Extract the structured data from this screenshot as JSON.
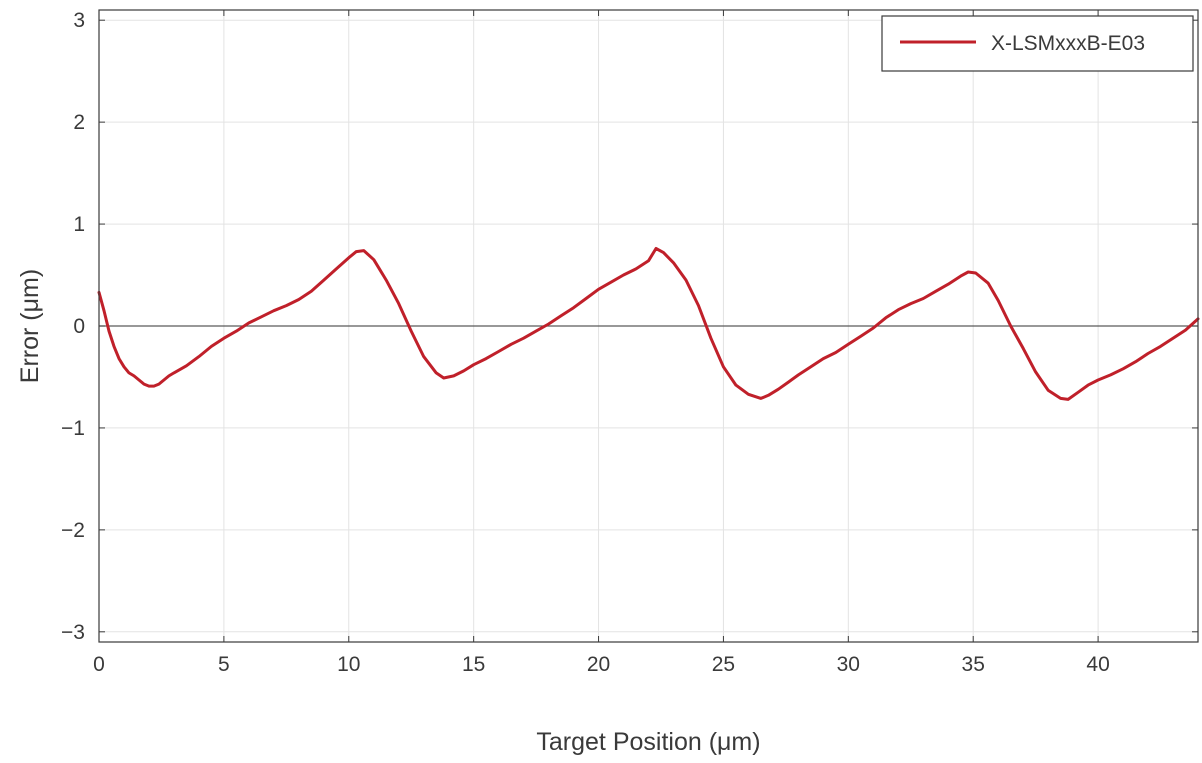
{
  "chart_data": {
    "type": "line",
    "title": "",
    "xlabel": "Target Position (μm)",
    "ylabel": "Error (μm)",
    "xlim": [
      0,
      44
    ],
    "ylim": [
      -3.1,
      3.1
    ],
    "xticks": [
      0,
      5,
      10,
      15,
      20,
      25,
      30,
      35,
      40
    ],
    "xtick_labels": [
      "0",
      "5",
      "10",
      "15",
      "20",
      "25",
      "30",
      "35",
      "40"
    ],
    "yticks": [
      -3,
      -2,
      -1,
      0,
      1,
      2,
      3
    ],
    "ytick_labels": [
      "−3",
      "−2",
      "−1",
      "0",
      "1",
      "2",
      "3"
    ],
    "grid": true,
    "legend_position": "top-right",
    "series": [
      {
        "name": "X-LSMxxxB-E03",
        "color": "#c0202a",
        "x": [
          0,
          0.2,
          0.4,
          0.6,
          0.8,
          1.0,
          1.2,
          1.4,
          1.6,
          1.8,
          2.0,
          2.2,
          2.4,
          2.6,
          2.8,
          3.0,
          3.5,
          4.0,
          4.5,
          5.0,
          5.5,
          6.0,
          6.5,
          7.0,
          7.5,
          8.0,
          8.5,
          9.0,
          9.5,
          10.0,
          10.3,
          10.6,
          11.0,
          11.5,
          12.0,
          12.5,
          13.0,
          13.5,
          13.8,
          14.2,
          14.6,
          15.0,
          15.5,
          16.0,
          16.5,
          17.0,
          17.5,
          18.0,
          18.5,
          19.0,
          19.5,
          20.0,
          20.5,
          21.0,
          21.5,
          22.0,
          22.3,
          22.6,
          23.0,
          23.5,
          24.0,
          24.5,
          25.0,
          25.5,
          26.0,
          26.5,
          26.8,
          27.2,
          27.6,
          28.0,
          28.5,
          29.0,
          29.5,
          30.0,
          30.5,
          31.0,
          31.5,
          32.0,
          32.5,
          33.0,
          33.5,
          34.0,
          34.5,
          34.8,
          35.1,
          35.6,
          36.0,
          36.5,
          37.0,
          37.5,
          38.0,
          38.5,
          38.8,
          39.2,
          39.6,
          40.0,
          40.5,
          41.0,
          41.5,
          42.0,
          42.5,
          43.0,
          43.5,
          44.0
        ],
        "y": [
          0.33,
          0.15,
          -0.05,
          -0.2,
          -0.32,
          -0.4,
          -0.46,
          -0.49,
          -0.53,
          -0.57,
          -0.59,
          -0.59,
          -0.57,
          -0.53,
          -0.49,
          -0.46,
          -0.39,
          -0.3,
          -0.2,
          -0.12,
          -0.05,
          0.03,
          0.09,
          0.15,
          0.2,
          0.26,
          0.34,
          0.45,
          0.56,
          0.67,
          0.73,
          0.74,
          0.65,
          0.45,
          0.22,
          -0.05,
          -0.3,
          -0.46,
          -0.51,
          -0.49,
          -0.44,
          -0.38,
          -0.32,
          -0.25,
          -0.18,
          -0.12,
          -0.05,
          0.02,
          0.1,
          0.18,
          0.27,
          0.36,
          0.43,
          0.5,
          0.56,
          0.64,
          0.76,
          0.72,
          0.62,
          0.45,
          0.2,
          -0.12,
          -0.4,
          -0.58,
          -0.67,
          -0.71,
          -0.68,
          -0.62,
          -0.55,
          -0.48,
          -0.4,
          -0.32,
          -0.26,
          -0.18,
          -0.1,
          -0.02,
          0.08,
          0.16,
          0.22,
          0.27,
          0.34,
          0.41,
          0.49,
          0.53,
          0.52,
          0.42,
          0.25,
          0.0,
          -0.22,
          -0.45,
          -0.63,
          -0.71,
          -0.72,
          -0.65,
          -0.58,
          -0.53,
          -0.48,
          -0.42,
          -0.35,
          -0.27,
          -0.2,
          -0.12,
          -0.04,
          0.07
        ]
      }
    ]
  }
}
